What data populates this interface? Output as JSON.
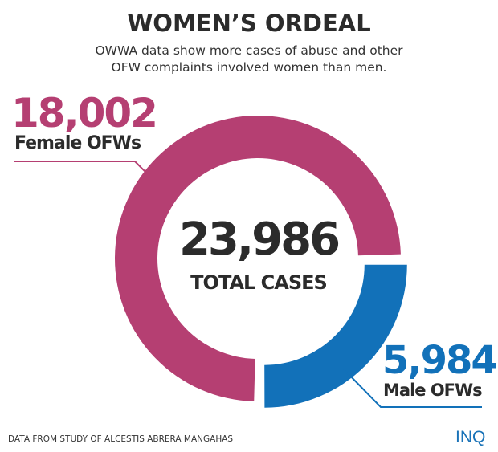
{
  "title": "WOMEN’S ORDEAL",
  "subtitle_lines": [
    "OWWA data show more cases of abuse and other",
    "OFW complaints involved women than men."
  ],
  "center": {
    "value": "23,986",
    "label": "TOTAL CASES"
  },
  "female": {
    "value": "18,002",
    "label": "Female OFWs"
  },
  "male": {
    "value": "5,984",
    "label": "Male OFWs"
  },
  "source": "DATA FROM STUDY OF ALCESTIS ABRERA MANGAHAS",
  "logo": "INQ",
  "colors": {
    "female": "#b53f72",
    "male": "#1271b9",
    "text": "#2b2b2b"
  },
  "chart_data": {
    "type": "pie",
    "donut": true,
    "title": "WOMEN’S ORDEAL",
    "total": 23986,
    "slices": [
      {
        "name": "Female OFWs",
        "value": 18002,
        "color": "#b53f72"
      },
      {
        "name": "Male OFWs",
        "value": 5984,
        "color": "#1271b9",
        "exploded": true
      }
    ]
  }
}
